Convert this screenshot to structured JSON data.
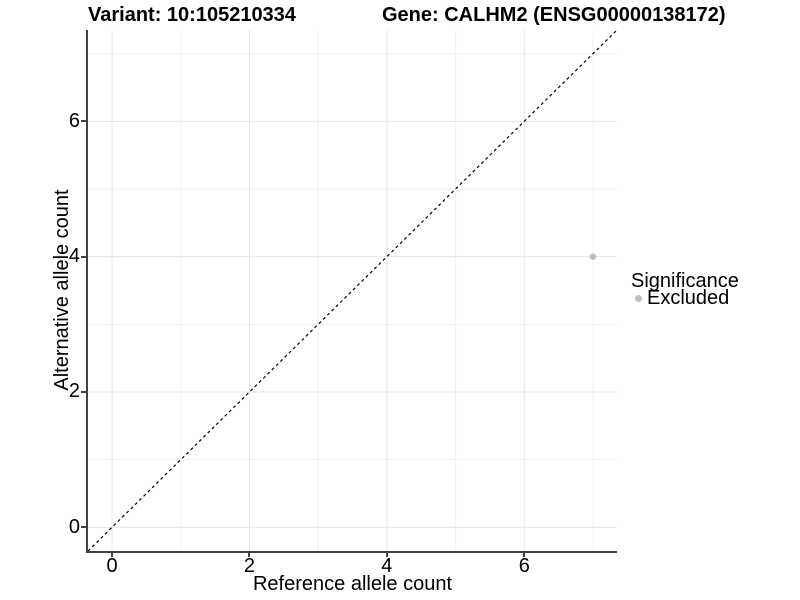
{
  "chart_data": {
    "type": "scatter",
    "titles": {
      "left": "Variant: 10:105210334",
      "right": "Gene: CALHM2 (ENSG00000138172)"
    },
    "xlabel": "Reference allele count",
    "ylabel": "Alternative allele count",
    "x_ticks": [
      0,
      2,
      4,
      6
    ],
    "y_ticks": [
      0,
      2,
      4,
      6
    ],
    "x_minor_gridlines": [
      1,
      3,
      5,
      7
    ],
    "y_minor_gridlines": [
      1,
      3,
      5,
      7
    ],
    "xlim": [
      -0.35,
      7.35
    ],
    "ylim": [
      -0.35,
      7.35
    ],
    "grid": "major and minor, light gray on white",
    "reference_line": {
      "type": "identity y=x",
      "style": "dashed",
      "color": "#000000"
    },
    "series": [
      {
        "name": "Excluded",
        "color": "#bebebe",
        "points": [
          {
            "x": 7,
            "y": 4
          }
        ]
      }
    ],
    "legend": {
      "title": "Significance",
      "position": "right",
      "entries": [
        {
          "label": "Excluded",
          "color": "#bebebe"
        }
      ]
    }
  },
  "colors": {
    "background": "#ffffff",
    "axis_line": "#404040",
    "text": "#000000",
    "grid_major": "#e7e7e7",
    "grid_minor": "#f1f1f1",
    "point": "#bebebe"
  }
}
